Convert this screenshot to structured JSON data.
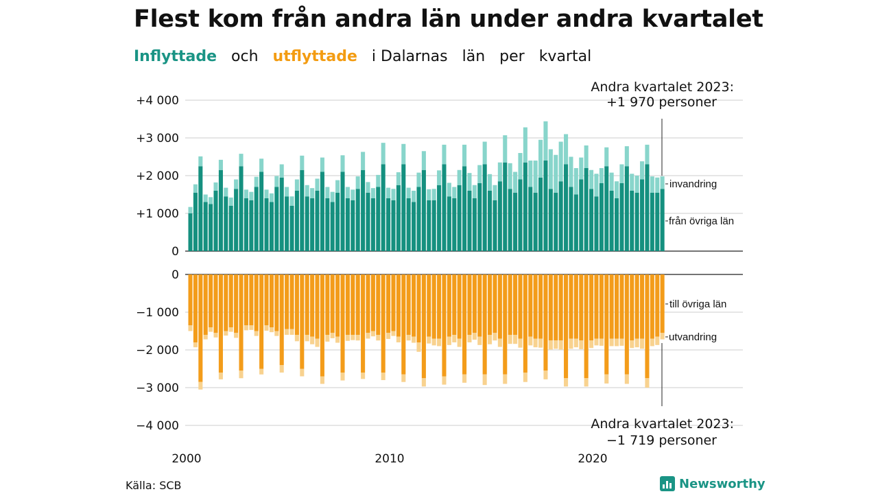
{
  "title": "Flest kom från andra län under andra kvartalet",
  "subtitle": {
    "part1": "Inflyttade",
    "part2": "och",
    "part3": "utflyttade",
    "part4": "i Dalarnas",
    "part5": "län",
    "part6": "per",
    "part7": "kvartal"
  },
  "colors": {
    "in_dark": "#15907f",
    "in_light": "#88d5cb",
    "out_dark": "#f39c1a",
    "out_light": "#f8d28f",
    "subtitle_in": "#1a9485",
    "subtitle_out": "#f39c12"
  },
  "annotations": {
    "top_line1": "Andra kvartalet 2023:",
    "top_line2": "+1 970 personer",
    "bottom_line1": "Andra kvartalet 2023:",
    "bottom_line2": "−1 719 personer",
    "invandring": "invandring",
    "fran_ovriga_lan": "från övriga län",
    "till_ovriga_lan": "till övriga län",
    "utvandring": "utvandring"
  },
  "source": "Källa: SCB",
  "logo_text": "Newsworthy",
  "logo_icon": "bar-chart-icon",
  "chart_data": {
    "type": "bar",
    "x_labels": [
      "2000",
      "2010",
      "2020"
    ],
    "y_ticks_top": [
      "+4 000",
      "+3 000",
      "+2 000",
      "+1 000",
      "0"
    ],
    "y_ticks_bottom": [
      "0",
      "−1 000",
      "−2 000",
      "−3 000",
      "−4 000"
    ],
    "ylim_top": [
      0,
      4000
    ],
    "ylim_bottom": [
      -4000,
      0
    ],
    "start": "2000 Q1",
    "end": "2023 Q2",
    "series": [
      {
        "name": "från övriga län",
        "values": [
          1000,
          1550,
          2250,
          1300,
          1250,
          1600,
          2150,
          1450,
          1200,
          1650,
          2250,
          1400,
          1350,
          1700,
          2100,
          1400,
          1300,
          1700,
          1950,
          1450,
          1200,
          1600,
          2150,
          1450,
          1400,
          1600,
          2100,
          1400,
          1300,
          1550,
          2100,
          1400,
          1350,
          1650,
          2150,
          1550,
          1400,
          1700,
          2300,
          1400,
          1350,
          1750,
          2300,
          1400,
          1300,
          1700,
          2150,
          1350,
          1350,
          1750,
          2300,
          1450,
          1400,
          1750,
          2250,
          1600,
          1400,
          1800,
          2300,
          1600,
          1350,
          1850,
          2350,
          1650,
          1550,
          1900,
          2350,
          1700,
          1550,
          1950,
          2400,
          1650,
          1550,
          1850,
          2300,
          1700,
          1500,
          1900,
          2200,
          1650,
          1450,
          1800,
          2250,
          1600,
          1400,
          1800,
          2250,
          1600,
          1550,
          1900,
          2300,
          1550,
          1550,
          1650
        ]
      },
      {
        "name": "invandring",
        "values": [
          170,
          220,
          260,
          200,
          180,
          220,
          270,
          230,
          220,
          250,
          330,
          230,
          220,
          270,
          350,
          230,
          230,
          290,
          350,
          250,
          250,
          300,
          380,
          300,
          270,
          320,
          380,
          300,
          270,
          330,
          440,
          300,
          280,
          330,
          480,
          280,
          270,
          320,
          570,
          280,
          300,
          340,
          540,
          280,
          300,
          380,
          500,
          290,
          300,
          390,
          520,
          360,
          300,
          400,
          570,
          470,
          350,
          480,
          600,
          440,
          400,
          500,
          720,
          680,
          550,
          700,
          930,
          700,
          850,
          1000,
          1040,
          1050,
          1000,
          1050,
          800,
          800,
          700,
          580,
          600,
          500,
          600,
          400,
          500,
          480,
          450,
          500,
          530,
          450,
          450,
          480,
          520,
          430,
          400,
          330
        ]
      },
      {
        "name": "till övriga län",
        "values": [
          -1350,
          -1800,
          -2850,
          -1600,
          -1400,
          -1550,
          -2600,
          -1500,
          -1400,
          -1550,
          -2550,
          -1350,
          -1350,
          -1500,
          -2500,
          -1350,
          -1400,
          -1500,
          -2400,
          -1450,
          -1450,
          -1600,
          -2500,
          -1600,
          -1650,
          -1700,
          -2700,
          -1600,
          -1550,
          -1650,
          -2600,
          -1600,
          -1600,
          -1600,
          -2600,
          -1550,
          -1500,
          -1600,
          -2600,
          -1550,
          -1500,
          -1650,
          -2650,
          -1600,
          -1650,
          -1800,
          -2750,
          -1650,
          -1700,
          -1700,
          -2700,
          -1650,
          -1600,
          -1700,
          -2650,
          -1600,
          -1550,
          -1650,
          -2650,
          -1600,
          -1550,
          -1700,
          -2650,
          -1600,
          -1600,
          -1700,
          -2600,
          -1650,
          -1700,
          -1700,
          -2550,
          -1750,
          -1750,
          -1750,
          -2750,
          -1700,
          -1700,
          -1750,
          -2750,
          -1750,
          -1700,
          -1700,
          -2650,
          -1700,
          -1700,
          -1700,
          -2650,
          -1750,
          -1700,
          -1700,
          -2750,
          -1700,
          -1650,
          -1550
        ]
      },
      {
        "name": "utvandring",
        "values": [
          -150,
          -130,
          -200,
          -120,
          -120,
          -120,
          -180,
          -120,
          -120,
          -130,
          -200,
          -130,
          -120,
          -130,
          -150,
          -140,
          -130,
          -130,
          -200,
          -150,
          -150,
          -170,
          -200,
          -170,
          -200,
          -220,
          -200,
          -180,
          -140,
          -160,
          -210,
          -160,
          -140,
          -150,
          -170,
          -150,
          -140,
          -150,
          -200,
          -160,
          -130,
          -150,
          -200,
          -150,
          -160,
          -250,
          -220,
          -180,
          -180,
          -200,
          -220,
          -220,
          -200,
          -220,
          -220,
          -200,
          -180,
          -220,
          -280,
          -250,
          -200,
          -220,
          -250,
          -240,
          -240,
          -240,
          -250,
          -230,
          -230,
          -240,
          -230,
          -240,
          -220,
          -240,
          -220,
          -270,
          -230,
          -230,
          -220,
          -200,
          -180,
          -190,
          -240,
          -200,
          -200,
          -190,
          -250,
          -200,
          -230,
          -270,
          -250,
          -200,
          -220,
          -170
        ]
      }
    ]
  }
}
